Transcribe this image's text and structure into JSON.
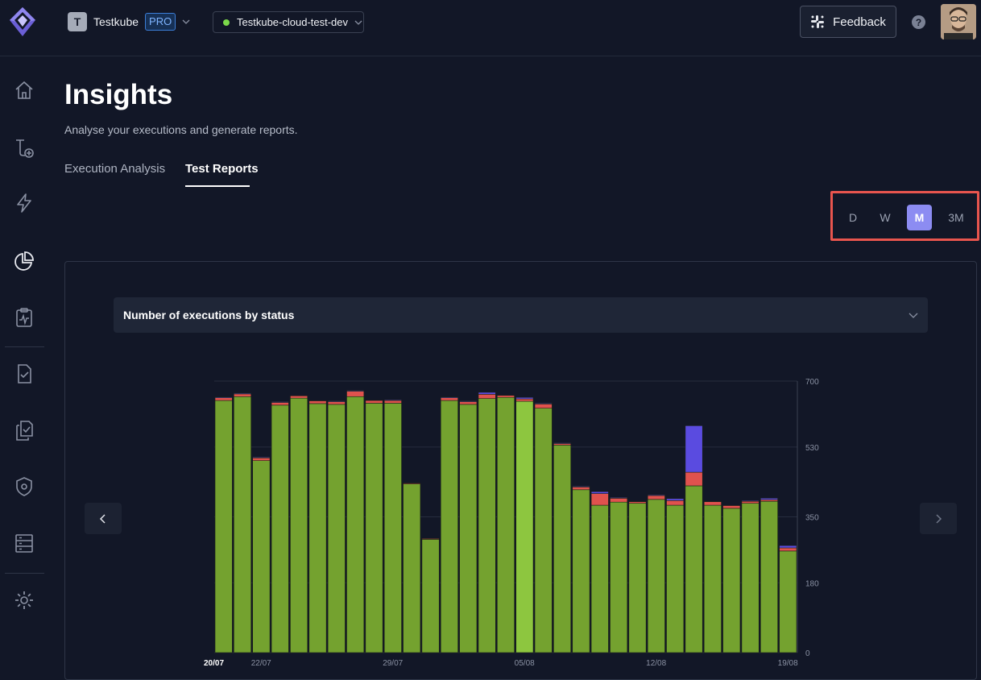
{
  "header": {
    "org_initial": "T",
    "org_name": "Testkube",
    "plan_badge": "PRO",
    "environment": "Testkube-cloud-test-dev",
    "feedback_label": "Feedback",
    "help_symbol": "?"
  },
  "sidebar": {
    "items": [
      {
        "icon": "home-icon"
      },
      {
        "icon": "add-workflow-icon"
      },
      {
        "icon": "lightning-icon"
      },
      {
        "icon": "pie-chart-icon"
      },
      {
        "icon": "clipboard-pulse-icon"
      },
      {
        "icon": "document-check-icon"
      },
      {
        "icon": "documents-stack-icon"
      },
      {
        "icon": "shield-gear-icon"
      },
      {
        "icon": "server-rack-icon"
      },
      {
        "icon": "gear-icon"
      }
    ]
  },
  "page": {
    "title": "Insights",
    "subtitle": "Analyse your executions and generate reports."
  },
  "tabs": [
    {
      "label": "Execution Analysis",
      "active": false
    },
    {
      "label": "Test Reports",
      "active": true
    }
  ],
  "period": {
    "options": [
      "D",
      "W",
      "M",
      "3M"
    ],
    "selected": "M"
  },
  "report": {
    "selected_metric": "Number of executions by status"
  },
  "colors": {
    "passed": "#74a22f",
    "passed_highlight": "#8dc63f",
    "failed": "#e0524e",
    "aborted": "#5a4be0",
    "accent": "#8c8cf2",
    "annotation": "#e8554e"
  },
  "chart_data": {
    "type": "bar",
    "stacked": true,
    "x": [
      "20/07",
      "21/07",
      "22/07",
      "23/07",
      "24/07",
      "25/07",
      "26/07",
      "27/07",
      "28/07",
      "29/07",
      "30/07",
      "31/07",
      "01/08",
      "02/08",
      "03/08",
      "04/08",
      "05/08",
      "06/08",
      "07/08",
      "08/08",
      "09/08",
      "10/08",
      "11/08",
      "12/08",
      "13/08",
      "14/08",
      "15/08",
      "16/08",
      "17/08",
      "18/08",
      "19/08"
    ],
    "x_tick_labels": [
      "20/07",
      "22/07",
      "29/07",
      "05/08",
      "12/08",
      "19/08"
    ],
    "series": [
      {
        "key": "passed",
        "values": [
          650,
          660,
          495,
          638,
          656,
          642,
          640,
          660,
          643,
          643,
          435,
          292,
          650,
          640,
          655,
          658,
          648,
          630,
          535,
          420,
          380,
          388,
          385,
          395,
          380,
          430,
          380,
          372,
          385,
          390,
          262
        ]
      },
      {
        "key": "failed",
        "values": [
          7,
          7,
          7,
          7,
          6,
          7,
          7,
          14,
          7,
          7,
          2,
          2,
          7,
          7,
          11,
          5,
          6,
          11,
          4,
          7,
          30,
          10,
          4,
          10,
          12,
          35,
          9,
          7,
          5,
          4,
          8
        ]
      },
      {
        "key": "aborted",
        "values": [
          2,
          2,
          2,
          2,
          0,
          0,
          2,
          2,
          0,
          2,
          0,
          0,
          2,
          2,
          5,
          0,
          4,
          2,
          2,
          2,
          5,
          2,
          0,
          2,
          5,
          120,
          0,
          0,
          2,
          4,
          6
        ]
      }
    ],
    "highlight_index": 16,
    "y_ticks": [
      0,
      180,
      350,
      530,
      700
    ],
    "ylim": [
      0,
      700
    ],
    "grid": true
  }
}
